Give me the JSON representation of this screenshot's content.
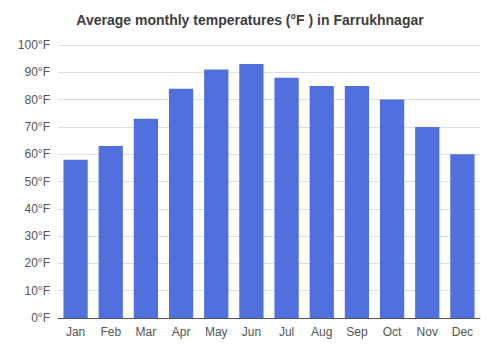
{
  "chart_data": {
    "type": "bar",
    "title": "Average monthly temperatures (°F ) in Farrukhnagar",
    "categories": [
      "Jan",
      "Feb",
      "Mar",
      "Apr",
      "May",
      "Jun",
      "Jul",
      "Aug",
      "Sep",
      "Oct",
      "Nov",
      "Dec"
    ],
    "values": [
      58,
      63,
      73,
      84,
      91,
      93,
      88,
      85,
      85,
      80,
      70,
      60
    ],
    "ylim": [
      0,
      100
    ],
    "yticks": [
      {
        "value": 0,
        "label": "0°F"
      },
      {
        "value": 10,
        "label": "10°F"
      },
      {
        "value": 20,
        "label": "20°F"
      },
      {
        "value": 30,
        "label": "30°F"
      },
      {
        "value": 40,
        "label": "40°F"
      },
      {
        "value": 50,
        "label": "50°F"
      },
      {
        "value": 60,
        "label": "60°F"
      },
      {
        "value": 70,
        "label": "70°F"
      },
      {
        "value": 80,
        "label": "80°F"
      },
      {
        "value": 90,
        "label": "90°F"
      },
      {
        "value": 100,
        "label": "100°F"
      }
    ],
    "grid": true
  }
}
